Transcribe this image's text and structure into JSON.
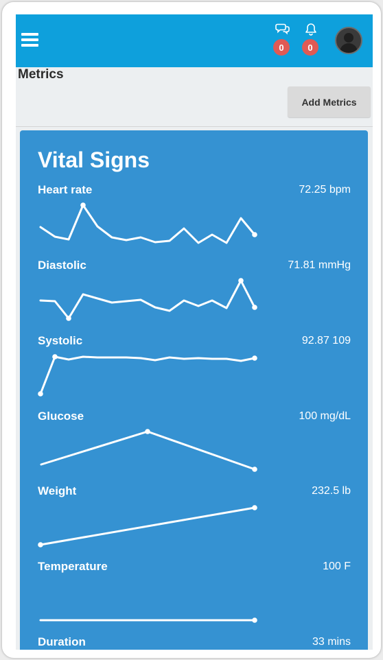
{
  "header": {
    "menu_icon": "hamburger-menu-icon",
    "messages": {
      "icon": "chat-bubbles-icon",
      "count": "0"
    },
    "notifications": {
      "icon": "bell-icon",
      "count": "0"
    },
    "avatar_icon": "user-avatar-icon",
    "colors": {
      "bar": "#0ea0dc",
      "badge": "#e05a54"
    }
  },
  "page": {
    "title": "Metrics",
    "add_button_label": "Add Metrics"
  },
  "card": {
    "title": "Vital Signs",
    "color": "#3592d2",
    "metrics": [
      {
        "label": "Heart rate",
        "value": "72.25 bpm"
      },
      {
        "label": "Diastolic",
        "value": "71.81 mmHg"
      },
      {
        "label": "Systolic",
        "value": "92.87 109"
      },
      {
        "label": "Glucose",
        "value": "100 mg/dL"
      },
      {
        "label": "Weight",
        "value": "232.5 lb"
      },
      {
        "label": "Temperature",
        "value": "100 F"
      },
      {
        "label": "Duration",
        "value": "33 mins"
      }
    ]
  }
}
